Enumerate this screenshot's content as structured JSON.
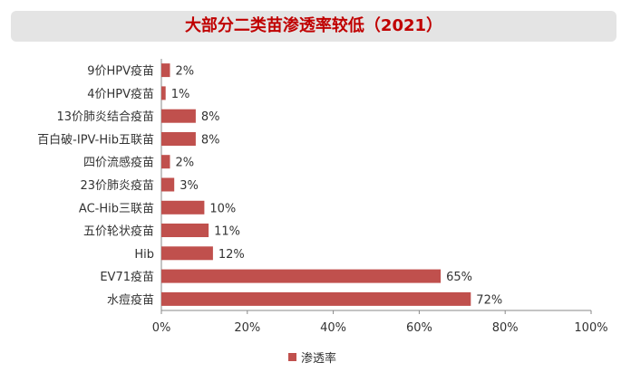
{
  "title": "大部分二类苗渗透率较低（2021）",
  "colors": {
    "bar": "#c0504d",
    "title": "#c00000",
    "title_bg": "#e4e4e4"
  },
  "chart_data": {
    "type": "bar",
    "orientation": "horizontal",
    "title": "大部分二类苗渗透率较低（2021）",
    "categories": [
      "9价HPV疫苗",
      "4价HPV疫苗",
      "13价肺炎结合疫苗",
      "百白破-IPV-Hib五联苗",
      "四价流感疫苗",
      "23价肺炎疫苗",
      "AC-Hib三联苗",
      "五价轮状疫苗",
      "Hib",
      "EV71疫苗",
      "水痘疫苗"
    ],
    "series": [
      {
        "name": "渗透率",
        "values": [
          2,
          1,
          8,
          8,
          2,
          3,
          10,
          11,
          12,
          65,
          72
        ]
      }
    ],
    "value_labels": [
      "2%",
      "1%",
      "8%",
      "8%",
      "2%",
      "3%",
      "10%",
      "11%",
      "12%",
      "65%",
      "72%"
    ],
    "xlim": [
      0,
      100
    ],
    "xticks": [
      "0%",
      "20%",
      "40%",
      "60%",
      "80%",
      "100%"
    ],
    "grid": false,
    "legend": {
      "position": "bottom",
      "entries": [
        "渗透率"
      ]
    }
  }
}
